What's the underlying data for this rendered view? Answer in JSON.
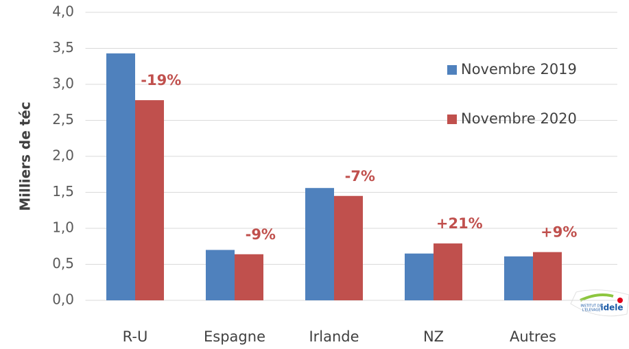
{
  "chart_data": {
    "type": "bar",
    "y_axis_label": "Milliers de téc",
    "categories": [
      "R-U",
      "Espagne",
      "Irlande",
      "NZ",
      "Autres"
    ],
    "series": [
      {
        "name": "Novembre 2019",
        "color": "#4f81bd",
        "values": [
          3.43,
          0.7,
          1.56,
          0.65,
          0.61
        ]
      },
      {
        "name": "Novembre 2020",
        "color": "#c0504d",
        "values": [
          2.78,
          0.64,
          1.45,
          0.79,
          0.67
        ]
      }
    ],
    "annotations": [
      "-19%",
      "-9%",
      "-7%",
      "+21%",
      "+9%"
    ],
    "ylim": [
      0,
      4
    ],
    "yticks": [
      {
        "value": 0,
        "label": "0,0"
      },
      {
        "value": 0.5,
        "label": "0,5"
      },
      {
        "value": 1,
        "label": "1,0"
      },
      {
        "value": 1.5,
        "label": "1,5"
      },
      {
        "value": 2,
        "label": "2,0"
      },
      {
        "value": 2.5,
        "label": "2,5"
      },
      {
        "value": 3,
        "label": "3,0"
      },
      {
        "value": 3.5,
        "label": "3,5"
      },
      {
        "value": 4,
        "label": "4,0"
      }
    ],
    "grid": true,
    "legend": "right",
    "logo": {
      "line1": "INSTITUT DE",
      "line2": "L'ELEVAGE",
      "brand": "idele"
    }
  }
}
